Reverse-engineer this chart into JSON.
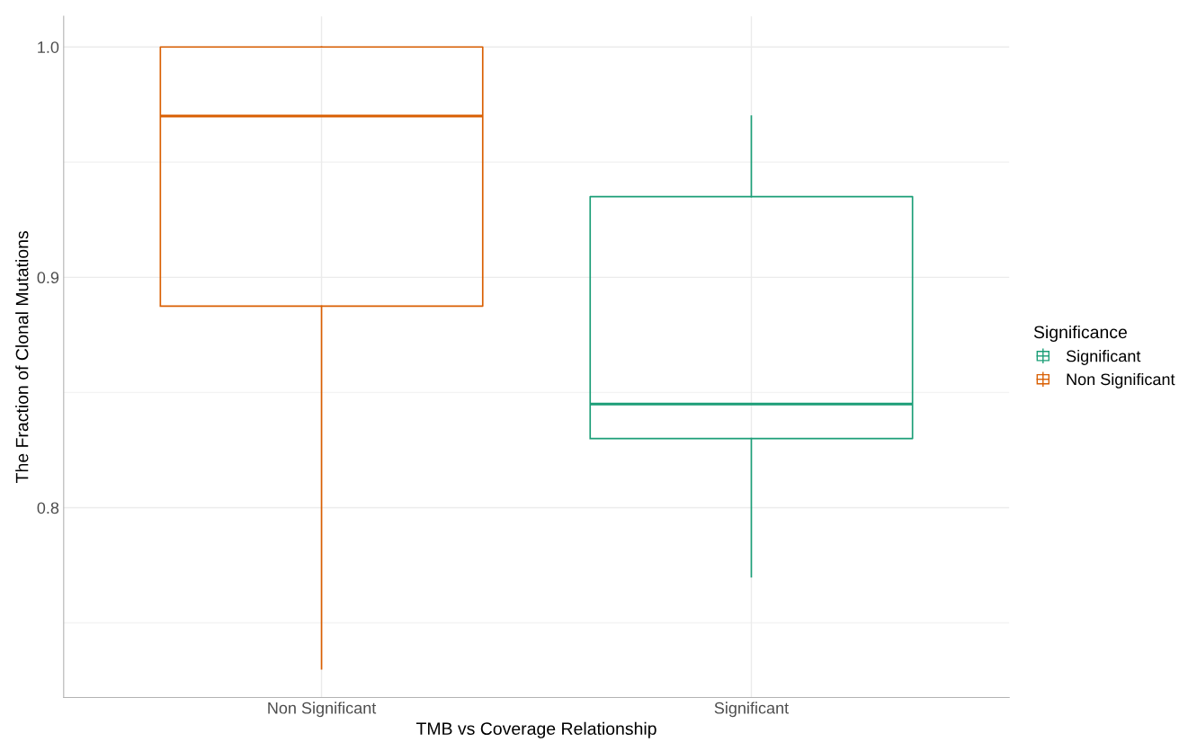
{
  "chart_data": {
    "type": "box",
    "xlabel": "TMB vs Coverage Relationship",
    "ylabel": "The Fraction of Clonal Mutations",
    "legend_title": "Significance",
    "legend": "right",
    "grid": true,
    "categories": [
      "Non Significant",
      "Significant"
    ],
    "ylim": [
      0.7176,
      1.0133
    ],
    "yticks": [
      {
        "value": 0.75,
        "label": null
      },
      {
        "value": 0.8,
        "label": "0.8"
      },
      {
        "value": 0.85,
        "label": null
      },
      {
        "value": 0.9,
        "label": "0.9"
      },
      {
        "value": 0.95,
        "label": null
      },
      {
        "value": 1.0,
        "label": "1.0"
      }
    ],
    "series": [
      {
        "name": "Significant",
        "color": "#1b9e77",
        "boxes": [
          null,
          {
            "low": 0.77,
            "q1": 0.83,
            "median": 0.845,
            "q3": 0.935,
            "high": 0.97
          }
        ]
      },
      {
        "name": "Non Significant",
        "color": "#d95f02",
        "boxes": [
          {
            "low": 0.73,
            "q1": 0.8875,
            "median": 0.97,
            "q3": 1.0,
            "high": 1.0
          },
          null
        ]
      }
    ]
  }
}
